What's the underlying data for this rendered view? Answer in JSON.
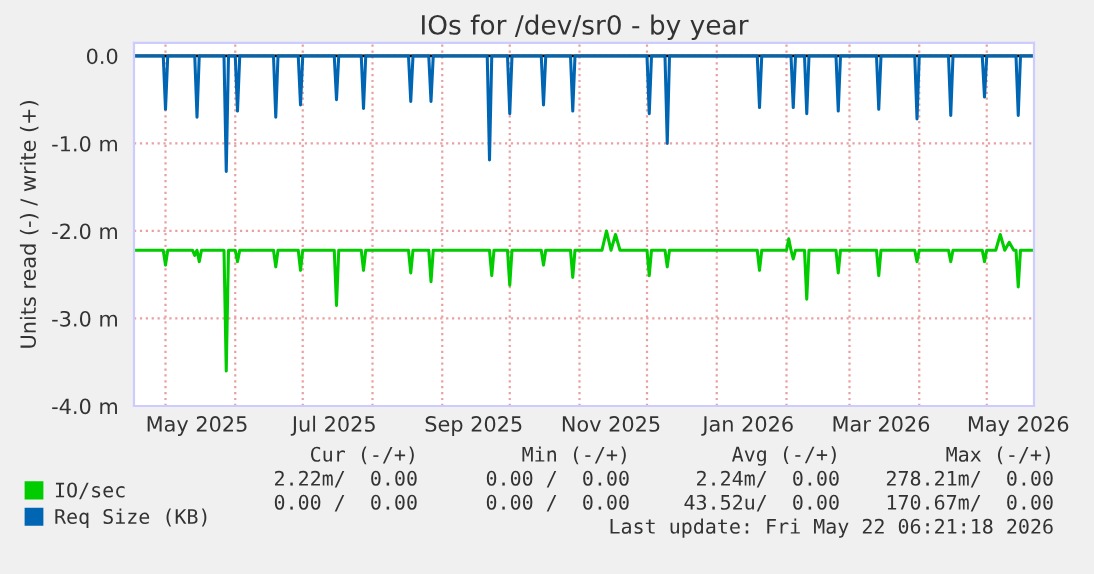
{
  "chart_data": {
    "type": "line",
    "title": "IOs for /dev/sr0 - by year",
    "ylabel": "Units read (-) / write (+)",
    "xlim": [
      "2025-04-17",
      "2026-05-22"
    ],
    "ylim": [
      -4.0,
      0.15
    ],
    "yticks": [
      {
        "value": 0,
        "label": "0.0"
      },
      {
        "value": -1,
        "label": "-1.0 m"
      },
      {
        "value": -2,
        "label": "-2.0 m"
      },
      {
        "value": -3,
        "label": "-3.0 m"
      },
      {
        "value": -4,
        "label": "-4.0 m"
      }
    ],
    "xticks": [
      {
        "value": "2025-05-01",
        "label": null
      },
      {
        "value": "2025-06-01",
        "label": null
      },
      {
        "value": "2025-07-01",
        "label": null
      },
      {
        "value": "2025-08-01",
        "label": null
      },
      {
        "value": "2025-09-01",
        "label": null
      },
      {
        "value": "2025-10-01",
        "label": null
      },
      {
        "value": "2025-11-01",
        "label": null
      },
      {
        "value": "2025-12-01",
        "label": null
      },
      {
        "value": "2026-01-01",
        "label": null
      },
      {
        "value": "2026-02-01",
        "label": null
      },
      {
        "value": "2026-03-01",
        "label": null
      },
      {
        "value": "2026-04-01",
        "label": null
      },
      {
        "value": "2026-05-01",
        "label": null
      },
      {
        "value": "2025-05-15",
        "label": "May 2025"
      },
      {
        "value": "2025-07-15",
        "label": "Jul 2025"
      },
      {
        "value": "2025-09-15",
        "label": "Sep 2025"
      },
      {
        "value": "2025-11-15",
        "label": "Nov 2025"
      },
      {
        "value": "2026-01-15",
        "label": "Jan 2026"
      },
      {
        "value": "2026-03-15",
        "label": "Mar 2026"
      },
      {
        "value": "2026-05-15",
        "label": "May 2026"
      }
    ],
    "grid": true,
    "legend": "bottom",
    "ref_lines": [
      {
        "axis": "y",
        "value": 0,
        "color": "#000000"
      }
    ],
    "series": [
      {
        "name": "IO/sec",
        "color": "#00cc00",
        "x": [
          "2025-04-17",
          "2025-04-30",
          "2025-05-01",
          "2025-05-02",
          "2025-05-13",
          "2025-05-14",
          "2025-05-15",
          "2025-05-16",
          "2025-05-17",
          "2025-05-27",
          "2025-05-28",
          "2025-05-29",
          "2025-06-01",
          "2025-06-02",
          "2025-06-03",
          "2025-06-18",
          "2025-06-19",
          "2025-06-20",
          "2025-06-29",
          "2025-06-30",
          "2025-07-01",
          "2025-07-15",
          "2025-07-16",
          "2025-07-17",
          "2025-07-27",
          "2025-07-28",
          "2025-07-29",
          "2025-08-17",
          "2025-08-18",
          "2025-08-19",
          "2025-08-26",
          "2025-08-27",
          "2025-08-28",
          "2025-09-22",
          "2025-09-23",
          "2025-09-24",
          "2025-09-30",
          "2025-10-01",
          "2025-10-02",
          "2025-10-15",
          "2025-10-16",
          "2025-10-17",
          "2025-10-28",
          "2025-10-29",
          "2025-10-30",
          "2025-11-11",
          "2025-11-13",
          "2025-11-15",
          "2025-11-17",
          "2025-11-19",
          "2025-12-01",
          "2025-12-02",
          "2025-12-03",
          "2025-12-09",
          "2025-12-10",
          "2025-12-11",
          "2026-01-19",
          "2026-01-20",
          "2026-01-21",
          "2026-02-01",
          "2026-02-02",
          "2026-02-03",
          "2026-02-04",
          "2026-02-05",
          "2026-02-09",
          "2026-02-10",
          "2026-02-11",
          "2026-02-23",
          "2026-02-24",
          "2026-02-25",
          "2026-03-13",
          "2026-03-14",
          "2026-03-15",
          "2026-03-30",
          "2026-03-31",
          "2026-04-01",
          "2026-04-14",
          "2026-04-15",
          "2026-04-16",
          "2026-04-29",
          "2026-04-30",
          "2026-05-01",
          "2026-05-05",
          "2026-05-07",
          "2026-05-09",
          "2026-05-11",
          "2026-05-13",
          "2026-05-14",
          "2026-05-15",
          "2026-05-16",
          "2026-05-22"
        ],
        "values": [
          -2.22,
          -2.22,
          -2.39,
          -2.22,
          -2.22,
          -2.28,
          -2.22,
          -2.35,
          -2.22,
          -2.22,
          -3.6,
          -2.22,
          -2.22,
          -2.35,
          -2.22,
          -2.22,
          -2.41,
          -2.22,
          -2.22,
          -2.45,
          -2.22,
          -2.22,
          -2.85,
          -2.22,
          -2.22,
          -2.45,
          -2.22,
          -2.22,
          -2.48,
          -2.22,
          -2.22,
          -2.58,
          -2.22,
          -2.22,
          -2.51,
          -2.22,
          -2.22,
          -2.62,
          -2.22,
          -2.22,
          -2.39,
          -2.22,
          -2.22,
          -2.53,
          -2.22,
          -2.22,
          -2.0,
          -2.22,
          -2.04,
          -2.22,
          -2.22,
          -2.51,
          -2.22,
          -2.22,
          -2.41,
          -2.22,
          -2.22,
          -2.45,
          -2.22,
          -2.22,
          -2.09,
          -2.22,
          -2.32,
          -2.22,
          -2.22,
          -2.78,
          -2.22,
          -2.22,
          -2.48,
          -2.22,
          -2.22,
          -2.51,
          -2.22,
          -2.22,
          -2.35,
          -2.22,
          -2.22,
          -2.35,
          -2.22,
          -2.22,
          -2.35,
          -2.22,
          -2.22,
          -2.04,
          -2.22,
          -2.13,
          -2.22,
          -2.22,
          -2.64,
          -2.22,
          -2.22
        ]
      },
      {
        "name": "Req Size (KB)",
        "color": "#0066b3",
        "x": [
          "2025-04-17",
          "2025-04-30",
          "2025-05-01",
          "2025-05-02",
          "2025-05-14",
          "2025-05-15",
          "2025-05-16",
          "2025-05-27",
          "2025-05-28",
          "2025-05-29",
          "2025-06-01",
          "2025-06-02",
          "2025-06-03",
          "2025-06-18",
          "2025-06-19",
          "2025-06-20",
          "2025-06-29",
          "2025-06-30",
          "2025-07-01",
          "2025-07-15",
          "2025-07-16",
          "2025-07-17",
          "2025-07-27",
          "2025-07-28",
          "2025-07-29",
          "2025-08-17",
          "2025-08-18",
          "2025-08-19",
          "2025-08-26",
          "2025-08-27",
          "2025-08-28",
          "2025-09-21",
          "2025-09-22",
          "2025-09-23",
          "2025-09-30",
          "2025-10-01",
          "2025-10-02",
          "2025-10-15",
          "2025-10-16",
          "2025-10-17",
          "2025-10-28",
          "2025-10-29",
          "2025-10-30",
          "2025-12-01",
          "2025-12-02",
          "2025-12-03",
          "2025-12-09",
          "2025-12-10",
          "2025-12-11",
          "2026-01-19",
          "2026-01-20",
          "2026-01-21",
          "2026-02-03",
          "2026-02-04",
          "2026-02-05",
          "2026-02-09",
          "2026-02-10",
          "2026-02-11",
          "2026-02-23",
          "2026-02-24",
          "2026-02-25",
          "2026-03-13",
          "2026-03-14",
          "2026-03-15",
          "2026-03-30",
          "2026-03-31",
          "2026-04-01",
          "2026-04-14",
          "2026-04-15",
          "2026-04-16",
          "2026-04-29",
          "2026-04-30",
          "2026-05-01",
          "2026-05-14",
          "2026-05-15",
          "2026-05-16",
          "2026-05-22"
        ],
        "values": [
          0,
          0,
          -0.61,
          0,
          0,
          -0.7,
          0,
          0,
          -1.32,
          0,
          0,
          -0.63,
          0,
          0,
          -0.7,
          0,
          0,
          -0.56,
          0,
          0,
          -0.5,
          0,
          0,
          -0.6,
          0,
          0,
          -0.52,
          0,
          0,
          -0.52,
          0,
          0,
          -1.19,
          0,
          0,
          -0.66,
          0,
          0,
          -0.56,
          0,
          0,
          -0.63,
          0,
          0,
          -0.66,
          0,
          0,
          -1.0,
          0,
          0,
          -0.59,
          0,
          0,
          -0.59,
          0,
          0,
          -0.66,
          0,
          0,
          -0.63,
          0,
          0,
          -0.61,
          0,
          0,
          -0.72,
          0,
          0,
          -0.68,
          0,
          0,
          -0.47,
          0,
          0,
          -0.68,
          0,
          0
        ]
      }
    ],
    "annotations": [
      "Cur (-/+)",
      "Min (-/+)",
      "Avg (-/+)",
      "Max (-/+)",
      "2.22m/  0.00",
      "0.00 /  0.00",
      "2.24m/  0.00",
      "278.21m/  0.00",
      "0.00 /  0.00",
      "0.00 /  0.00",
      "43.52u/  0.00",
      "170.67m/  0.00",
      "Last update: Fri May 22 06:21:18 2026"
    ]
  }
}
